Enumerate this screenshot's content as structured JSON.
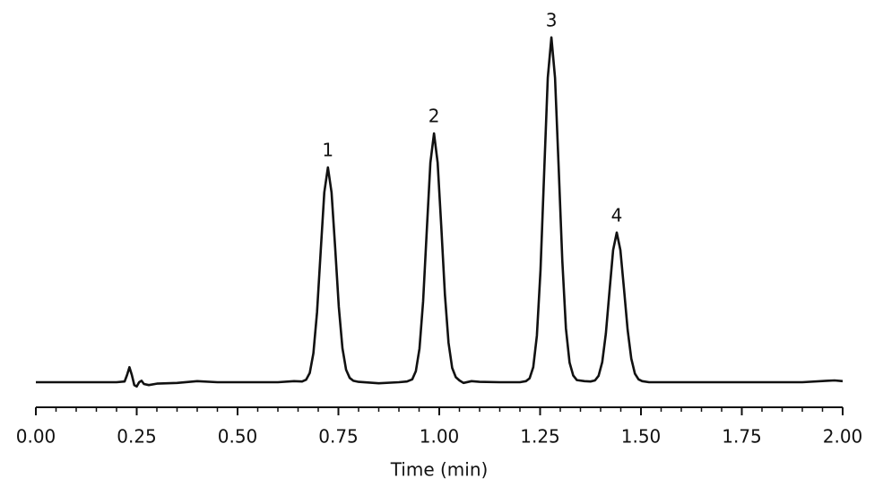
{
  "chart_data": {
    "type": "line",
    "x_label": "Time (min)",
    "x": [
      0,
      0.1,
      0.2,
      0.22,
      0.226,
      0.232,
      0.238,
      0.244,
      0.25,
      0.256,
      0.262,
      0.268,
      0.28,
      0.3,
      0.35,
      0.4,
      0.45,
      0.5,
      0.6,
      0.64,
      0.66,
      0.67,
      0.679,
      0.688,
      0.697,
      0.706,
      0.715,
      0.724,
      0.733,
      0.742,
      0.751,
      0.76,
      0.769,
      0.778,
      0.787,
      0.8,
      0.85,
      0.9,
      0.92,
      0.933,
      0.942,
      0.951,
      0.96,
      0.969,
      0.978,
      0.987,
      0.996,
      1.005,
      1.014,
      1.023,
      1.032,
      1.041,
      1.05,
      1.06,
      1.08,
      1.1,
      1.15,
      1.2,
      1.215,
      1.224,
      1.233,
      1.242,
      1.251,
      1.26,
      1.269,
      1.278,
      1.287,
      1.296,
      1.305,
      1.314,
      1.323,
      1.332,
      1.341,
      1.36,
      1.375,
      1.386,
      1.395,
      1.404,
      1.413,
      1.422,
      1.431,
      1.44,
      1.449,
      1.458,
      1.467,
      1.476,
      1.485,
      1.494,
      1.503,
      1.52,
      1.6,
      1.7,
      1.8,
      1.9,
      1.96,
      1.98,
      2.0
    ],
    "series": [
      {
        "color": "#111111",
        "values": [
          0,
          0,
          0,
          0.2,
          2,
          4.2,
          2,
          -0.8,
          -1.2,
          0,
          0.4,
          -0.5,
          -0.8,
          -0.4,
          -0.2,
          0.3,
          0,
          0,
          0,
          0.3,
          0.2,
          0.7,
          2.6,
          8.1,
          19.5,
          36.4,
          53,
          60,
          53,
          37.5,
          21,
          9.5,
          3.5,
          1.2,
          0.4,
          0.1,
          -0.3,
          0,
          0.2,
          0.8,
          3.1,
          9.4,
          22.6,
          42.2,
          61.3,
          69.5,
          61.3,
          43.5,
          24.5,
          11,
          4,
          1.4,
          0.5,
          -0.2,
          0.3,
          0.1,
          0,
          0,
          0.3,
          1.1,
          4.2,
          13,
          31.3,
          58.4,
          85,
          96.3,
          85,
          60,
          34,
          15,
          5.5,
          1.9,
          0.6,
          0.3,
          0.2,
          0.5,
          1.8,
          5.6,
          13.6,
          25.4,
          36.9,
          41.8,
          36.9,
          26,
          14.6,
          6.6,
          2.4,
          0.8,
          0.3,
          0,
          0,
          0,
          0,
          0,
          0.4,
          0.5,
          0.3
        ]
      }
    ],
    "annotations": [
      {
        "text": "1",
        "x": 0.724,
        "y": 60
      },
      {
        "text": "2",
        "x": 0.987,
        "y": 69.5
      },
      {
        "text": "3",
        "x": 1.278,
        "y": 96.3
      },
      {
        "text": "4",
        "x": 1.44,
        "y": 41.8
      }
    ],
    "xlim": [
      0,
      2
    ],
    "ylim": [
      -2,
      100
    ],
    "xticks": [
      {
        "value": 0,
        "label": "0.00"
      },
      {
        "value": 0.25,
        "label": "0.25"
      },
      {
        "value": 0.5,
        "label": "0.50"
      },
      {
        "value": 0.75,
        "label": "0.75"
      },
      {
        "value": 1,
        "label": "1.00"
      },
      {
        "value": 1.25,
        "label": "1.25"
      },
      {
        "value": 1.5,
        "label": "1.50"
      },
      {
        "value": 1.75,
        "label": "1.75"
      },
      {
        "value": 2,
        "label": "2.00"
      }
    ],
    "xminorticks": [
      0.05,
      0.1,
      0.15,
      0.2,
      0.3,
      0.35,
      0.4,
      0.45,
      0.55,
      0.6,
      0.65,
      0.7,
      0.8,
      0.85,
      0.9,
      0.95,
      1.05,
      1.1,
      1.15,
      1.2,
      1.3,
      1.35,
      1.4,
      1.45,
      1.55,
      1.6,
      1.65,
      1.7,
      1.8,
      1.85,
      1.9,
      1.95
    ],
    "grid": false
  }
}
